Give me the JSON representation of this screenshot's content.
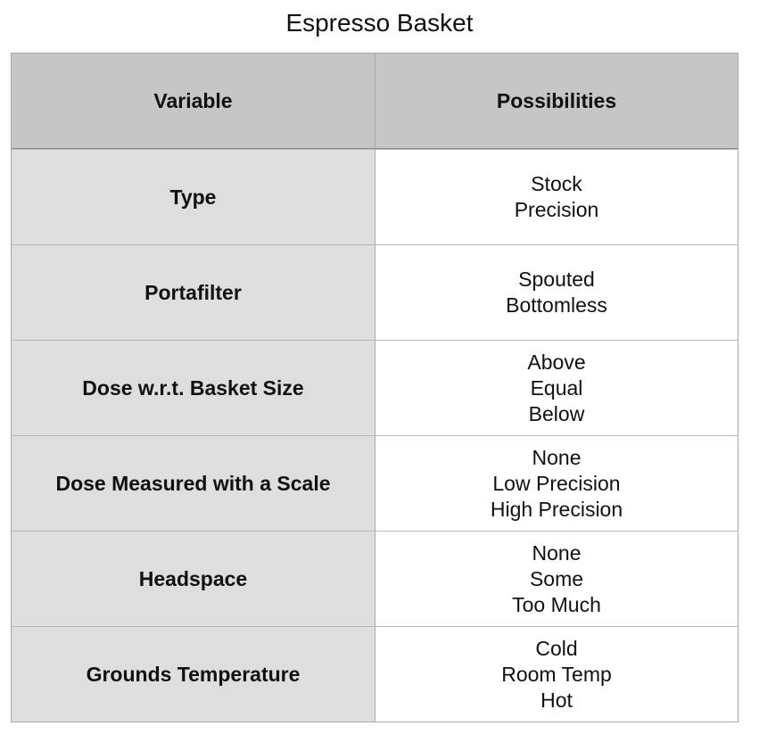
{
  "title": "Espresso Basket",
  "header": {
    "variable": "Variable",
    "possibilities": "Possibilities"
  },
  "rows": [
    {
      "variable": "Type",
      "possibilities": [
        "Stock",
        "Precision"
      ]
    },
    {
      "variable": "Portafilter",
      "possibilities": [
        "Spouted",
        "Bottomless"
      ]
    },
    {
      "variable": "Dose w.r.t. Basket Size",
      "possibilities": [
        "Above",
        "Equal",
        "Below"
      ]
    },
    {
      "variable": "Dose Measured with a Scale",
      "possibilities": [
        "None",
        "Low Precision",
        "High Precision"
      ]
    },
    {
      "variable": "Headspace",
      "possibilities": [
        "None",
        "Some",
        "Too Much"
      ]
    },
    {
      "variable": "Grounds Temperature",
      "possibilities": [
        "Cold",
        "Room Temp",
        "Hot"
      ]
    }
  ],
  "colors": {
    "header_bg": "#c6c6c6",
    "variable_cell_bg": "#dedede",
    "possibility_cell_bg": "#ffffff",
    "border": "#a9a9a9"
  }
}
